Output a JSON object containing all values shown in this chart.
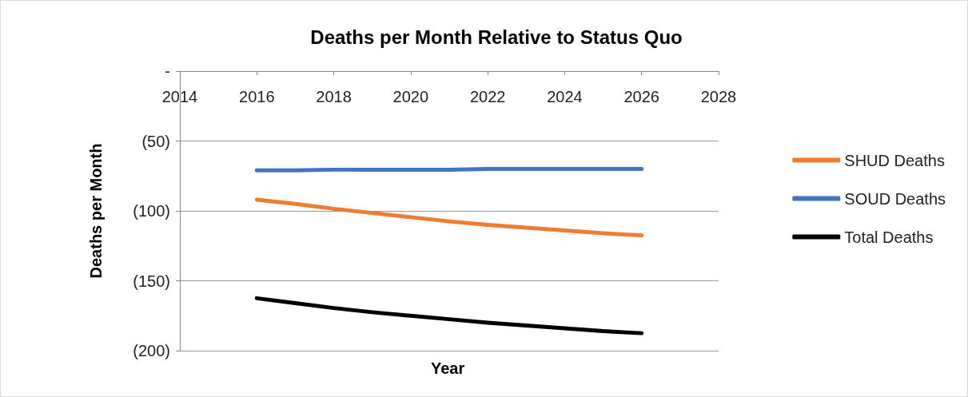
{
  "chart_data": {
    "type": "line",
    "title": "Deaths per Month Relative to Status Quo",
    "xlabel": "Year",
    "ylabel": "Deaths per Month",
    "x": [
      2016,
      2017,
      2018,
      2019,
      2020,
      2021,
      2022,
      2023,
      2024,
      2025,
      2026
    ],
    "series": [
      {
        "name": "SHUD Deaths",
        "color": "#ed7d31",
        "values": [
          -92,
          -95,
          -98.5,
          -101.5,
          -104.5,
          -107.5,
          -110,
          -112,
          -114,
          -116,
          -117.5
        ]
      },
      {
        "name": "SOUD Deaths",
        "color": "#4472c4",
        "values": [
          -71,
          -71,
          -70.5,
          -70.5,
          -70.5,
          -70.5,
          -70,
          -70,
          -70,
          -70,
          -70
        ]
      },
      {
        "name": "Total Deaths",
        "color": "#000000",
        "values": [
          -162.5,
          -166,
          -169.5,
          -172.5,
          -175,
          -177.5,
          -180,
          -182,
          -184,
          -186,
          -187.5
        ]
      }
    ],
    "xlim": [
      2014,
      2028
    ],
    "xticks": [
      2014,
      2016,
      2018,
      2020,
      2022,
      2024,
      2026,
      2028
    ],
    "ylim": [
      -200,
      0
    ],
    "yticks": [
      {
        "value": -200,
        "label": "(200)"
      },
      {
        "value": -150,
        "label": "(150)"
      },
      {
        "value": -100,
        "label": "(100)"
      },
      {
        "value": -50,
        "label": "(50)"
      },
      {
        "value": 0,
        "label": "-"
      }
    ],
    "grid": "y",
    "legend": "right",
    "marker": "none",
    "line_style": "solid"
  }
}
